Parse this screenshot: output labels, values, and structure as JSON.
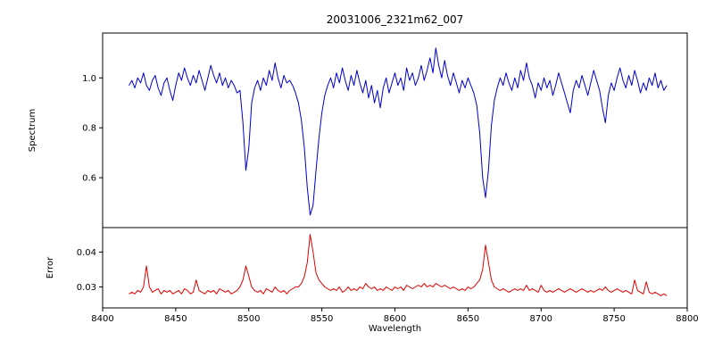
{
  "chart_data": {
    "type": "line",
    "title": "20031006_2321m62_007",
    "xlabel": "Wavelength",
    "xlim": [
      8400,
      8800
    ],
    "xticks": [
      8400,
      8450,
      8500,
      8550,
      8600,
      8650,
      8700,
      8750,
      8800
    ],
    "grid": false,
    "legend": "none",
    "x": [
      8418,
      8420,
      8422,
      8424,
      8426,
      8428,
      8430,
      8432,
      8434,
      8436,
      8438,
      8440,
      8442,
      8444,
      8446,
      8448,
      8450,
      8452,
      8454,
      8456,
      8458,
      8460,
      8462,
      8464,
      8466,
      8468,
      8470,
      8472,
      8474,
      8476,
      8478,
      8480,
      8482,
      8484,
      8486,
      8488,
      8490,
      8492,
      8494,
      8496,
      8498,
      8500,
      8502,
      8504,
      8506,
      8508,
      8510,
      8512,
      8514,
      8516,
      8518,
      8520,
      8522,
      8524,
      8526,
      8528,
      8530,
      8532,
      8534,
      8536,
      8538,
      8540,
      8542,
      8544,
      8546,
      8548,
      8550,
      8552,
      8554,
      8556,
      8558,
      8560,
      8562,
      8564,
      8566,
      8568,
      8570,
      8572,
      8574,
      8576,
      8578,
      8580,
      8582,
      8584,
      8586,
      8588,
      8590,
      8592,
      8594,
      8596,
      8598,
      8600,
      8602,
      8604,
      8606,
      8608,
      8610,
      8612,
      8614,
      8616,
      8618,
      8620,
      8622,
      8624,
      8626,
      8628,
      8630,
      8632,
      8634,
      8636,
      8638,
      8640,
      8642,
      8644,
      8646,
      8648,
      8650,
      8652,
      8654,
      8656,
      8658,
      8660,
      8662,
      8664,
      8666,
      8668,
      8670,
      8672,
      8674,
      8676,
      8678,
      8680,
      8682,
      8684,
      8686,
      8688,
      8690,
      8692,
      8694,
      8696,
      8698,
      8700,
      8702,
      8704,
      8706,
      8708,
      8710,
      8712,
      8714,
      8716,
      8718,
      8720,
      8722,
      8724,
      8726,
      8728,
      8730,
      8732,
      8734,
      8736,
      8738,
      8740,
      8742,
      8744,
      8746,
      8748,
      8750,
      8752,
      8754,
      8756,
      8758,
      8760,
      8762,
      8764,
      8766,
      8768,
      8770,
      8772,
      8774,
      8776,
      8778,
      8780,
      8782,
      8784,
      8786
    ],
    "panels": [
      {
        "name": "spectrum",
        "ylabel": "Spectrum",
        "color": "#0000cd",
        "ylim": [
          0.4,
          1.18
        ],
        "yticks": [
          "0.6",
          "0.8",
          "1.0"
        ],
        "absorption_features": [
          {
            "center": 8498,
            "min": 0.63
          },
          {
            "center": 8542,
            "min": 0.45
          },
          {
            "center": 8662,
            "min": 0.52
          }
        ],
        "y": [
          0.97,
          0.99,
          0.96,
          1.0,
          0.98,
          1.02,
          0.97,
          0.95,
          0.99,
          1.01,
          0.96,
          0.93,
          0.98,
          1.0,
          0.95,
          0.91,
          0.97,
          1.02,
          0.99,
          1.04,
          1.0,
          0.97,
          1.01,
          0.98,
          1.03,
          0.99,
          0.95,
          1.0,
          1.05,
          1.01,
          0.98,
          1.02,
          0.97,
          1.0,
          0.96,
          0.99,
          0.97,
          0.94,
          0.95,
          0.82,
          0.63,
          0.72,
          0.9,
          0.96,
          0.99,
          0.95,
          1.0,
          0.97,
          1.03,
          0.99,
          1.06,
          1.0,
          0.96,
          1.01,
          0.98,
          0.99,
          0.97,
          0.94,
          0.9,
          0.83,
          0.72,
          0.56,
          0.45,
          0.49,
          0.63,
          0.76,
          0.86,
          0.93,
          0.97,
          1.0,
          0.96,
          1.02,
          0.98,
          1.04,
          0.99,
          0.95,
          1.01,
          0.97,
          1.03,
          0.98,
          0.94,
          0.99,
          0.92,
          0.97,
          0.9,
          0.95,
          0.88,
          0.96,
          1.0,
          0.94,
          0.98,
          1.02,
          0.97,
          1.0,
          0.95,
          1.04,
          0.99,
          1.02,
          0.97,
          1.0,
          1.05,
          0.99,
          1.03,
          1.08,
          1.02,
          1.12,
          1.05,
          1.0,
          1.07,
          1.01,
          0.97,
          1.02,
          0.98,
          0.94,
          0.99,
          0.96,
          1.0,
          0.97,
          0.94,
          0.89,
          0.78,
          0.6,
          0.52,
          0.63,
          0.81,
          0.91,
          0.96,
          1.0,
          0.97,
          1.02,
          0.98,
          0.95,
          1.0,
          0.96,
          1.03,
          0.99,
          1.06,
          1.0,
          0.97,
          0.92,
          0.98,
          0.95,
          1.0,
          0.96,
          0.99,
          0.93,
          0.97,
          1.02,
          0.98,
          0.94,
          0.9,
          0.86,
          0.95,
          0.99,
          0.96,
          1.01,
          0.97,
          0.93,
          0.98,
          1.03,
          0.99,
          0.95,
          0.88,
          0.82,
          0.93,
          0.98,
          0.95,
          1.0,
          1.04,
          0.99,
          0.96,
          1.01,
          0.97,
          1.03,
          0.99,
          0.94,
          0.98,
          0.95,
          1.0,
          0.97,
          1.02,
          0.96,
          0.99,
          0.95,
          0.97
        ]
      },
      {
        "name": "error",
        "ylabel": "Error",
        "color": "#e00000",
        "ylim": [
          0.024,
          0.047
        ],
        "yticks": [
          "0.03",
          "0.04"
        ],
        "peaks": [
          {
            "center": 8430,
            "max": 0.036
          },
          {
            "center": 8498,
            "max": 0.036
          },
          {
            "center": 8542,
            "max": 0.045
          },
          {
            "center": 8662,
            "max": 0.042
          }
        ],
        "y": [
          0.028,
          0.0285,
          0.028,
          0.029,
          0.0285,
          0.03,
          0.036,
          0.03,
          0.0285,
          0.029,
          0.0295,
          0.028,
          0.029,
          0.0285,
          0.029,
          0.028,
          0.0285,
          0.029,
          0.028,
          0.0295,
          0.029,
          0.028,
          0.0285,
          0.032,
          0.029,
          0.0285,
          0.028,
          0.029,
          0.0285,
          0.029,
          0.028,
          0.0295,
          0.029,
          0.0285,
          0.029,
          0.028,
          0.0285,
          0.029,
          0.03,
          0.032,
          0.036,
          0.033,
          0.03,
          0.029,
          0.0285,
          0.029,
          0.028,
          0.0295,
          0.029,
          0.0285,
          0.03,
          0.029,
          0.0285,
          0.029,
          0.028,
          0.029,
          0.0295,
          0.03,
          0.03,
          0.031,
          0.033,
          0.037,
          0.045,
          0.04,
          0.034,
          0.032,
          0.031,
          0.03,
          0.0295,
          0.029,
          0.0295,
          0.029,
          0.03,
          0.0285,
          0.029,
          0.03,
          0.029,
          0.0295,
          0.029,
          0.03,
          0.0295,
          0.031,
          0.03,
          0.0295,
          0.03,
          0.029,
          0.0295,
          0.029,
          0.03,
          0.0295,
          0.029,
          0.03,
          0.0295,
          0.03,
          0.029,
          0.0305,
          0.03,
          0.0295,
          0.03,
          0.0305,
          0.03,
          0.031,
          0.03,
          0.0305,
          0.03,
          0.031,
          0.0305,
          0.03,
          0.0305,
          0.03,
          0.0295,
          0.03,
          0.0295,
          0.029,
          0.0295,
          0.029,
          0.03,
          0.0295,
          0.03,
          0.031,
          0.032,
          0.035,
          0.042,
          0.037,
          0.032,
          0.03,
          0.0295,
          0.029,
          0.0295,
          0.029,
          0.0285,
          0.029,
          0.0295,
          0.029,
          0.0295,
          0.029,
          0.0305,
          0.029,
          0.0295,
          0.029,
          0.0285,
          0.0305,
          0.029,
          0.0285,
          0.029,
          0.0285,
          0.029,
          0.0295,
          0.029,
          0.0285,
          0.029,
          0.0295,
          0.029,
          0.0285,
          0.029,
          0.0295,
          0.029,
          0.0285,
          0.029,
          0.0285,
          0.029,
          0.0295,
          0.029,
          0.03,
          0.029,
          0.0285,
          0.029,
          0.0295,
          0.029,
          0.0285,
          0.029,
          0.0285,
          0.028,
          0.032,
          0.029,
          0.0285,
          0.028,
          0.0315,
          0.0285,
          0.028,
          0.0285,
          0.028,
          0.0275,
          0.028,
          0.0275
        ]
      }
    ]
  }
}
